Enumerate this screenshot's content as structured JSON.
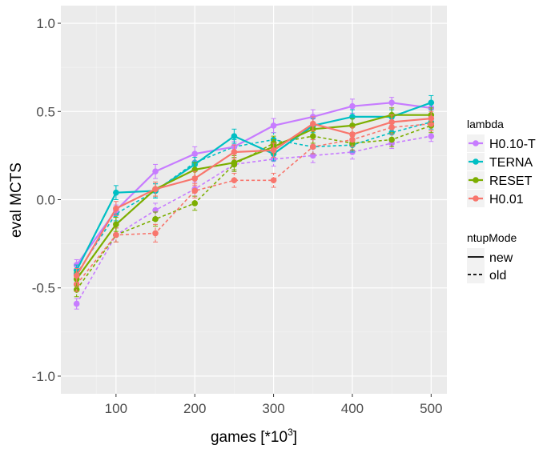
{
  "chart_data": {
    "type": "line",
    "title": "",
    "xlabel": "games [*10",
    "xlabel_sup": "3",
    "xlabel_end": "]",
    "ylabel": "eval MCTS",
    "xlim": [
      30,
      520
    ],
    "ylim": [
      -1.1,
      1.1
    ],
    "x_ticks": [
      100,
      200,
      300,
      400,
      500
    ],
    "x_tick_labels": [
      "100",
      "200",
      "300",
      "400",
      "500"
    ],
    "y_ticks": [
      -1.0,
      -0.5,
      0.0,
      0.5,
      1.0
    ],
    "y_tick_labels": [
      "-1.0",
      "-0.5",
      "0.0",
      "0.5",
      "1.0"
    ],
    "grid": true,
    "legend_position": "right",
    "x": [
      50,
      100,
      150,
      200,
      250,
      300,
      350,
      400,
      450,
      500
    ],
    "colors": {
      "H0.10-T": "#c77cff",
      "TERNA": "#00bfc4",
      "RESET": "#7cae00",
      "H0.01": "#f8766d",
      "panel_bg": "#ebebeb",
      "grid_major": "#ffffff"
    },
    "series": [
      {
        "name": "H0.10-T",
        "ntupMode": "new",
        "values": [
          -0.37,
          -0.06,
          0.16,
          0.26,
          0.3,
          0.42,
          0.47,
          0.53,
          0.55,
          0.52
        ],
        "err": [
          0.03,
          0.03,
          0.04,
          0.04,
          0.03,
          0.04,
          0.04,
          0.04,
          0.03,
          0.03
        ]
      },
      {
        "name": "TERNA",
        "ntupMode": "new",
        "values": [
          -0.4,
          0.04,
          0.05,
          0.2,
          0.36,
          0.26,
          0.42,
          0.47,
          0.47,
          0.55
        ],
        "err": [
          0.03,
          0.04,
          0.04,
          0.04,
          0.04,
          0.04,
          0.04,
          0.04,
          0.04,
          0.04
        ]
      },
      {
        "name": "RESET",
        "ntupMode": "new",
        "values": [
          -0.45,
          -0.14,
          0.06,
          0.17,
          0.21,
          0.3,
          0.4,
          0.42,
          0.48,
          0.48
        ],
        "err": [
          0.04,
          0.04,
          0.04,
          0.04,
          0.04,
          0.04,
          0.04,
          0.04,
          0.04,
          0.04
        ]
      },
      {
        "name": "H0.01",
        "ntupMode": "new",
        "values": [
          -0.43,
          -0.05,
          0.06,
          0.12,
          0.27,
          0.28,
          0.43,
          0.37,
          0.44,
          0.46
        ],
        "err": [
          0.04,
          0.04,
          0.04,
          0.04,
          0.04,
          0.04,
          0.04,
          0.04,
          0.04,
          0.04
        ]
      },
      {
        "name": "H0.10-T",
        "ntupMode": "old",
        "values": [
          -0.59,
          -0.2,
          -0.06,
          0.06,
          0.2,
          0.23,
          0.25,
          0.27,
          0.32,
          0.36
        ],
        "err": [
          0.03,
          0.04,
          0.04,
          0.04,
          0.04,
          0.04,
          0.04,
          0.04,
          0.03,
          0.03
        ]
      },
      {
        "name": "TERNA",
        "ntupMode": "old",
        "values": [
          -0.42,
          -0.08,
          0.05,
          0.21,
          0.3,
          0.34,
          0.3,
          0.31,
          0.38,
          0.44
        ],
        "err": [
          0.04,
          0.04,
          0.04,
          0.04,
          0.04,
          0.04,
          0.04,
          0.04,
          0.04,
          0.04
        ]
      },
      {
        "name": "RESET",
        "ntupMode": "old",
        "values": [
          -0.51,
          -0.2,
          -0.11,
          -0.02,
          0.2,
          0.32,
          0.36,
          0.32,
          0.34,
          0.42
        ],
        "err": [
          0.04,
          0.04,
          0.04,
          0.04,
          0.04,
          0.04,
          0.04,
          0.04,
          0.04,
          0.04
        ]
      },
      {
        "name": "H0.01",
        "ntupMode": "old",
        "values": [
          -0.48,
          -0.2,
          -0.19,
          0.05,
          0.11,
          0.11,
          0.3,
          0.34,
          0.41,
          0.43
        ],
        "err": [
          0.04,
          0.04,
          0.05,
          0.04,
          0.04,
          0.04,
          0.04,
          0.04,
          0.04,
          0.04
        ]
      }
    ]
  },
  "legend": {
    "lambda_title": "lambda",
    "lambda_items": [
      {
        "label": "H0.10-T",
        "color": "#c77cff"
      },
      {
        "label": "TERNA",
        "color": "#00bfc4"
      },
      {
        "label": "RESET",
        "color": "#7cae00"
      },
      {
        "label": "H0.01",
        "color": "#f8766d"
      }
    ],
    "ntup_title": "ntupMode",
    "ntup_items": [
      {
        "label": "new",
        "linetype": "solid"
      },
      {
        "label": "old",
        "linetype": "dashed"
      }
    ]
  }
}
